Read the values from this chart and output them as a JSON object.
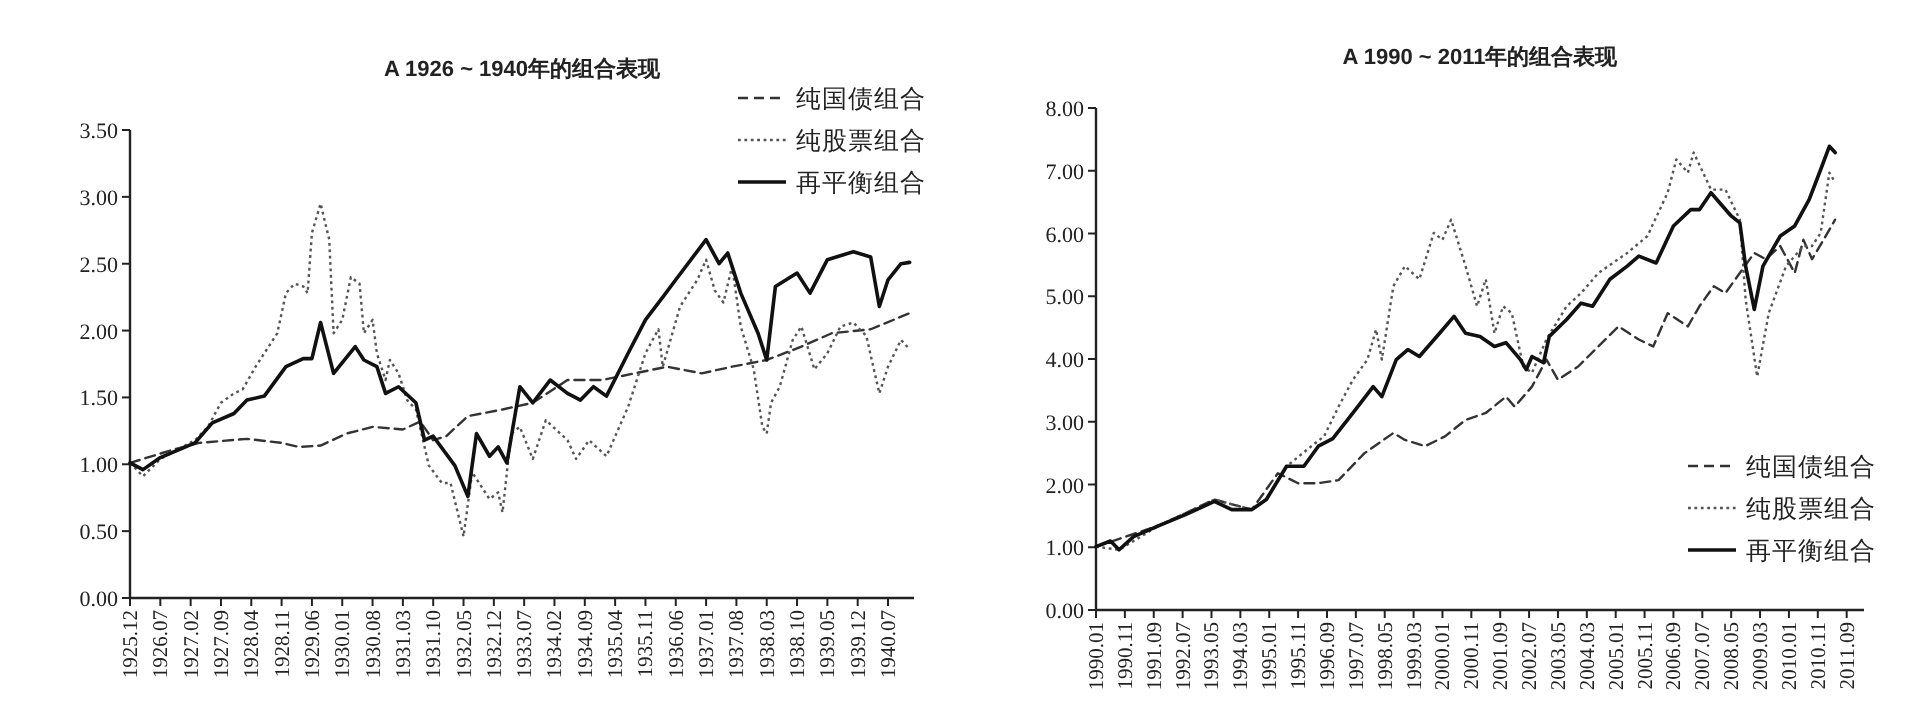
{
  "chart_data": [
    {
      "type": "line",
      "title": "A 1926 ~ 1940年的组合表现",
      "legend": "top right",
      "grid": false,
      "xlim": [
        "1925-12",
        "1941-01"
      ],
      "ylim": [
        0,
        3.5
      ],
      "yticks": [
        {
          "value": 0,
          "label": "0.00"
        },
        {
          "value": 0.5,
          "label": "0.50"
        },
        {
          "value": 1,
          "label": "1.00"
        },
        {
          "value": 1.5,
          "label": "1.50"
        },
        {
          "value": 2,
          "label": "2.00"
        },
        {
          "value": 2.5,
          "label": "2.50"
        },
        {
          "value": 3,
          "label": "3.00"
        },
        {
          "value": 3.5,
          "label": "3.50"
        }
      ],
      "xticks": [
        {
          "value": "1925-12",
          "label": "1925.12"
        },
        {
          "value": "1926-07",
          "label": "1926.07"
        },
        {
          "value": "1927-02",
          "label": "1927.02"
        },
        {
          "value": "1927-09",
          "label": "1927.09"
        },
        {
          "value": "1928-04",
          "label": "1928.04"
        },
        {
          "value": "1928-11",
          "label": "1928.11"
        },
        {
          "value": "1929-06",
          "label": "1929.06"
        },
        {
          "value": "1930-01",
          "label": "1930.01"
        },
        {
          "value": "1930-08",
          "label": "1930.08"
        },
        {
          "value": "1931-03",
          "label": "1931.03"
        },
        {
          "value": "1931-10",
          "label": "1931.10"
        },
        {
          "value": "1932-05",
          "label": "1932.05"
        },
        {
          "value": "1932-12",
          "label": "1932.12"
        },
        {
          "value": "1933-07",
          "label": "1933.07"
        },
        {
          "value": "1934-02",
          "label": "1934.02"
        },
        {
          "value": "1934-09",
          "label": "1934.09"
        },
        {
          "value": "1935-04",
          "label": "1935.04"
        },
        {
          "value": "1935-11",
          "label": "1935.11"
        },
        {
          "value": "1936-06",
          "label": "1936.06"
        },
        {
          "value": "1937-01",
          "label": "1937.01"
        },
        {
          "value": "1937-08",
          "label": "1937.08"
        },
        {
          "value": "1938-03",
          "label": "1938.03"
        },
        {
          "value": "1938-10",
          "label": "1938.10"
        },
        {
          "value": "1939-05",
          "label": "1939.05"
        },
        {
          "value": "1939-12",
          "label": "1939.12"
        },
        {
          "value": "1940-07",
          "label": "1940.07"
        }
      ],
      "series": [
        {
          "name": "纯国债组合",
          "color": "#333333",
          "line_style": "dashed",
          "x": [
            "1925-12",
            "1926-10",
            "1927-04",
            "1928-03",
            "1928-11",
            "1929-03",
            "1929-08",
            "1930-02",
            "1930-08",
            "1931-03",
            "1931-07",
            "1931-10",
            "1932-01",
            "1932-06",
            "1933-02",
            "1933-09",
            "1934-05",
            "1935-01",
            "1936-04",
            "1936-12",
            "1937-07",
            "1938-03",
            "1938-11",
            "1939-06",
            "1940-03",
            "1940-12"
          ],
          "values": [
            1.01,
            1.11,
            1.16,
            1.19,
            1.16,
            1.13,
            1.14,
            1.23,
            1.28,
            1.26,
            1.32,
            1.18,
            1.21,
            1.36,
            1.41,
            1.46,
            1.63,
            1.63,
            1.73,
            1.68,
            1.73,
            1.78,
            1.88,
            1.98,
            2.01,
            2.13
          ]
        },
        {
          "name": "纯股票组合",
          "color": "#555555",
          "line_style": "dotted",
          "x": [
            "1925-12",
            "1926-03",
            "1926-07",
            "1927-03",
            "1927-06",
            "1927-09",
            "1927-12",
            "1928-02",
            "1928-05",
            "1928-07",
            "1928-10",
            "1928-12",
            "1929-02",
            "1929-04",
            "1929-05",
            "1929-06",
            "1929-08",
            "1929-10",
            "1929-11",
            "1930-01",
            "1930-03",
            "1930-05",
            "1930-06",
            "1930-08",
            "1930-09",
            "1930-11",
            "1930-12",
            "1931-02",
            "1931-04",
            "1931-06",
            "1931-09",
            "1931-12",
            "1932-02",
            "1932-05",
            "1932-07",
            "1932-11",
            "1933-01",
            "1933-02",
            "1933-04",
            "1933-06",
            "1933-09",
            "1933-12",
            "1934-05",
            "1934-07",
            "1934-10",
            "1935-01",
            "1935-02",
            "1935-07",
            "1935-11",
            "1936-02",
            "1936-03",
            "1936-07",
            "1936-11",
            "1937-01",
            "1937-03",
            "1937-05",
            "1937-07",
            "1937-09",
            "1937-12",
            "1938-02",
            "1938-03",
            "1938-04",
            "1938-06",
            "1938-09",
            "1938-11",
            "1939-02",
            "1939-05",
            "1939-08",
            "1939-11",
            "1940-02",
            "1940-05",
            "1940-07",
            "1940-10",
            "1940-12"
          ],
          "values": [
            1.01,
            0.91,
            1.04,
            1.18,
            1.28,
            1.46,
            1.53,
            1.56,
            1.73,
            1.83,
            1.98,
            2.28,
            2.35,
            2.33,
            2.28,
            2.73,
            2.95,
            2.68,
            1.98,
            2.08,
            2.4,
            2.35,
            1.98,
            2.08,
            1.83,
            1.63,
            1.78,
            1.68,
            1.48,
            1.41,
            0.99,
            0.86,
            0.86,
            0.46,
            0.94,
            0.74,
            0.79,
            0.64,
            1.23,
            1.28,
            1.04,
            1.33,
            1.18,
            1.04,
            1.18,
            1.09,
            1.06,
            1.43,
            1.83,
            2.01,
            1.73,
            2.18,
            2.38,
            2.53,
            2.3,
            2.21,
            2.48,
            2.03,
            1.71,
            1.28,
            1.23,
            1.46,
            1.58,
            1.93,
            2.03,
            1.71,
            1.83,
            2.03,
            2.06,
            1.96,
            1.53,
            1.73,
            1.93,
            1.86
          ]
        },
        {
          "name": "再平衡组合",
          "color": "#111111",
          "line_style": "solid",
          "x": [
            "1925-12",
            "1926-03",
            "1926-07",
            "1927-03",
            "1927-07",
            "1927-12",
            "1928-03",
            "1928-07",
            "1928-12",
            "1929-04",
            "1929-06",
            "1929-08",
            "1929-11",
            "1930-04",
            "1930-06",
            "1930-09",
            "1930-11",
            "1931-02",
            "1931-06",
            "1931-08",
            "1931-10",
            "1932-03",
            "1932-06",
            "1932-08",
            "1932-11",
            "1933-01",
            "1933-03",
            "1933-06",
            "1933-09",
            "1934-01",
            "1934-05",
            "1934-08",
            "1934-11",
            "1935-02",
            "1935-07",
            "1935-11",
            "1936-03",
            "1936-06",
            "1937-01",
            "1937-04",
            "1937-06",
            "1937-09",
            "1938-01",
            "1938-03",
            "1938-05",
            "1938-10",
            "1939-01",
            "1939-05",
            "1939-11",
            "1940-03",
            "1940-05",
            "1940-07",
            "1940-10",
            "1940-12"
          ],
          "values": [
            1.01,
            0.96,
            1.05,
            1.16,
            1.31,
            1.38,
            1.48,
            1.51,
            1.73,
            1.79,
            1.79,
            2.06,
            1.68,
            1.88,
            1.78,
            1.73,
            1.53,
            1.58,
            1.46,
            1.18,
            1.21,
            0.99,
            0.76,
            1.23,
            1.06,
            1.13,
            1.01,
            1.58,
            1.46,
            1.63,
            1.53,
            1.48,
            1.58,
            1.51,
            1.83,
            2.08,
            2.25,
            2.38,
            2.68,
            2.5,
            2.58,
            2.28,
            1.98,
            1.78,
            2.33,
            2.43,
            2.28,
            2.53,
            2.59,
            2.55,
            2.18,
            2.38,
            2.5,
            2.51
          ]
        }
      ]
    },
    {
      "type": "line",
      "title": "A 1990 ~ 2011年的组合表现",
      "legend": "bottom right",
      "grid": false,
      "xlim": [
        "1990-01",
        "2012-03"
      ],
      "ylim": [
        0,
        8
      ],
      "yticks": [
        {
          "value": 0,
          "label": "0.00"
        },
        {
          "value": 1,
          "label": "1.00"
        },
        {
          "value": 2,
          "label": "2.00"
        },
        {
          "value": 3,
          "label": "3.00"
        },
        {
          "value": 4,
          "label": "4.00"
        },
        {
          "value": 5,
          "label": "5.00"
        },
        {
          "value": 6,
          "label": "6.00"
        },
        {
          "value": 7,
          "label": "7.00"
        },
        {
          "value": 8,
          "label": "8.00"
        }
      ],
      "xticks": [
        {
          "value": "1990-01",
          "label": "1990.01"
        },
        {
          "value": "1990-11",
          "label": "1990.11"
        },
        {
          "value": "1991-09",
          "label": "1991.09"
        },
        {
          "value": "1992-07",
          "label": "1992.07"
        },
        {
          "value": "1993-05",
          "label": "1993.05"
        },
        {
          "value": "1994-03",
          "label": "1994.03"
        },
        {
          "value": "1995-01",
          "label": "1995.01"
        },
        {
          "value": "1995-11",
          "label": "1995.11"
        },
        {
          "value": "1996-09",
          "label": "1996.09"
        },
        {
          "value": "1997-07",
          "label": "1997.07"
        },
        {
          "value": "1998-05",
          "label": "1998.05"
        },
        {
          "value": "1999-03",
          "label": "1999.03"
        },
        {
          "value": "2000-01",
          "label": "2000.01"
        },
        {
          "value": "2000-11",
          "label": "2000.11"
        },
        {
          "value": "2001-09",
          "label": "2001.09"
        },
        {
          "value": "2002-07",
          "label": "2002.07"
        },
        {
          "value": "2003-05",
          "label": "2003.05"
        },
        {
          "value": "2004-03",
          "label": "2004.03"
        },
        {
          "value": "2005-01",
          "label": "2005.01"
        },
        {
          "value": "2005-11",
          "label": "2005.11"
        },
        {
          "value": "2006-09",
          "label": "2006.09"
        },
        {
          "value": "2007-07",
          "label": "2007.07"
        },
        {
          "value": "2008-05",
          "label": "2008.05"
        },
        {
          "value": "2009-03",
          "label": "2009.03"
        },
        {
          "value": "2010-01",
          "label": "2010.01"
        },
        {
          "value": "2010-11",
          "label": "2010.11"
        },
        {
          "value": "2011-09",
          "label": "2011.09"
        }
      ],
      "series": [
        {
          "name": "纯国债组合",
          "color": "#333333",
          "line_style": "dashed",
          "x": [
            "1990-01",
            "1991-11",
            "1993-06",
            "1994-07",
            "1995-04",
            "1995-11",
            "1996-06",
            "1997-01",
            "1997-10",
            "1998-08",
            "1998-12",
            "1999-07",
            "2000-02",
            "2000-09",
            "2001-04",
            "2001-11",
            "2002-02",
            "2002-08",
            "2003-01",
            "2003-05",
            "2003-12",
            "2004-07",
            "2005-02",
            "2005-09",
            "2006-02",
            "2006-07",
            "2007-02",
            "2007-06",
            "2007-11",
            "2008-03",
            "2008-08",
            "2009-01",
            "2009-05",
            "2009-10",
            "2010-03",
            "2010-06",
            "2010-09",
            "2011-01",
            "2011-05"
          ],
          "values": [
            1.01,
            1.35,
            1.76,
            1.6,
            2.18,
            2.02,
            2.02,
            2.07,
            2.5,
            2.82,
            2.71,
            2.61,
            2.77,
            3.03,
            3.14,
            3.4,
            3.24,
            3.56,
            3.99,
            3.67,
            3.88,
            4.2,
            4.52,
            4.31,
            4.2,
            4.73,
            4.52,
            4.84,
            5.16,
            5.05,
            5.37,
            5.69,
            5.59,
            5.8,
            5.37,
            5.9,
            5.59,
            5.9,
            6.22
          ]
        },
        {
          "name": "纯股票组合",
          "color": "#555555",
          "line_style": "dotted",
          "x": [
            "1990-01",
            "1990-09",
            "1991-11",
            "1993-06",
            "1994-07",
            "1994-12",
            "1995-07",
            "1996-02",
            "1996-08",
            "1997-01",
            "1997-06",
            "1997-11",
            "1998-02",
            "1998-04",
            "1998-08",
            "1998-12",
            "1999-05",
            "1999-10",
            "2000-01",
            "2000-04",
            "2000-09",
            "2001-01",
            "2001-04",
            "2001-07",
            "2001-10",
            "2002-01",
            "2002-05",
            "2002-08",
            "2003-01",
            "2003-08",
            "2004-01",
            "2004-07",
            "2005-05",
            "2005-12",
            "2006-07",
            "2006-10",
            "2007-02",
            "2007-04",
            "2007-10",
            "2008-03",
            "2008-08",
            "2008-10",
            "2009-02",
            "2009-06",
            "2009-12",
            "2010-06",
            "2010-09",
            "2010-12",
            "2011-03",
            "2011-05"
          ],
          "values": [
            1.01,
            0.96,
            1.35,
            1.76,
            1.6,
            1.76,
            2.29,
            2.55,
            2.77,
            3.24,
            3.67,
            3.99,
            4.47,
            3.99,
            5.16,
            5.48,
            5.27,
            6.01,
            5.9,
            6.22,
            5.48,
            4.84,
            5.27,
            4.41,
            4.84,
            4.73,
            3.88,
            3.78,
            4.31,
            4.84,
            5.05,
            5.37,
            5.69,
            5.96,
            6.65,
            7.18,
            6.97,
            7.29,
            6.7,
            6.7,
            6.22,
            4.95,
            3.72,
            4.73,
            5.48,
            5.8,
            5.8,
            6.01,
            6.97,
            6.81
          ]
        },
        {
          "name": "再平衡组合",
          "color": "#111111",
          "line_style": "solid",
          "x": [
            "1990-01",
            "1990-06",
            "1990-09",
            "1991-02",
            "1991-11",
            "1992-08",
            "1993-06",
            "1993-12",
            "1994-07",
            "1994-12",
            "1995-07",
            "1996-01",
            "1996-06",
            "1996-11",
            "1997-06",
            "1998-01",
            "1998-04",
            "1998-09",
            "1999-01",
            "1999-05",
            "1999-12",
            "2000-05",
            "2000-09",
            "2001-02",
            "2001-07",
            "2001-11",
            "2002-04",
            "2002-06",
            "2002-08",
            "2002-12",
            "2003-02",
            "2003-08",
            "2004-01",
            "2004-05",
            "2004-11",
            "2005-05",
            "2005-09",
            "2006-03",
            "2006-09",
            "2007-03",
            "2007-06",
            "2007-10",
            "2008-01",
            "2008-05",
            "2008-08",
            "2008-10",
            "2009-01",
            "2009-04",
            "2009-10",
            "2010-03",
            "2010-08",
            "2010-12",
            "2011-03",
            "2011-05"
          ],
          "values": [
            1.01,
            1.1,
            0.96,
            1.17,
            1.35,
            1.52,
            1.73,
            1.6,
            1.6,
            1.76,
            2.29,
            2.29,
            2.61,
            2.73,
            3.14,
            3.56,
            3.4,
            3.99,
            4.15,
            4.04,
            4.41,
            4.68,
            4.41,
            4.36,
            4.2,
            4.26,
            3.99,
            3.83,
            4.04,
            3.94,
            4.36,
            4.63,
            4.89,
            4.84,
            5.27,
            5.48,
            5.64,
            5.53,
            6.12,
            6.38,
            6.38,
            6.65,
            6.49,
            6.28,
            6.17,
            5.48,
            4.79,
            5.48,
            5.96,
            6.12,
            6.54,
            7.02,
            7.39,
            7.29
          ]
        }
      ]
    }
  ]
}
